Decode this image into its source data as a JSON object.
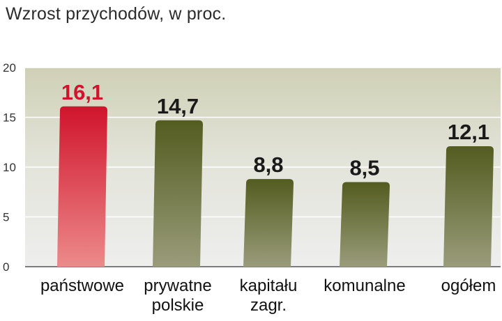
{
  "chart_data": {
    "type": "bar",
    "title": "Wzrost przychodów, w proc.",
    "categories": [
      [
        "państwowe"
      ],
      [
        "prywatne",
        "polskie"
      ],
      [
        "kapitału",
        "zagr."
      ],
      [
        "komunalne"
      ],
      [
        "ogółem"
      ]
    ],
    "values": [
      16.1,
      14.7,
      8.8,
      8.5,
      12.1
    ],
    "value_labels": [
      "16,1",
      "14,7",
      "8,8",
      "8,5",
      "12,1"
    ],
    "ylim": [
      0,
      20
    ],
    "yticks": [
      0,
      5,
      10,
      15,
      20
    ],
    "grid": true,
    "colors": {
      "highlight": "#d0142c",
      "bar": "#5b6427",
      "highlight_label": "#d0142c",
      "label": "#1a1a1a"
    },
    "highlight_index": 0
  }
}
